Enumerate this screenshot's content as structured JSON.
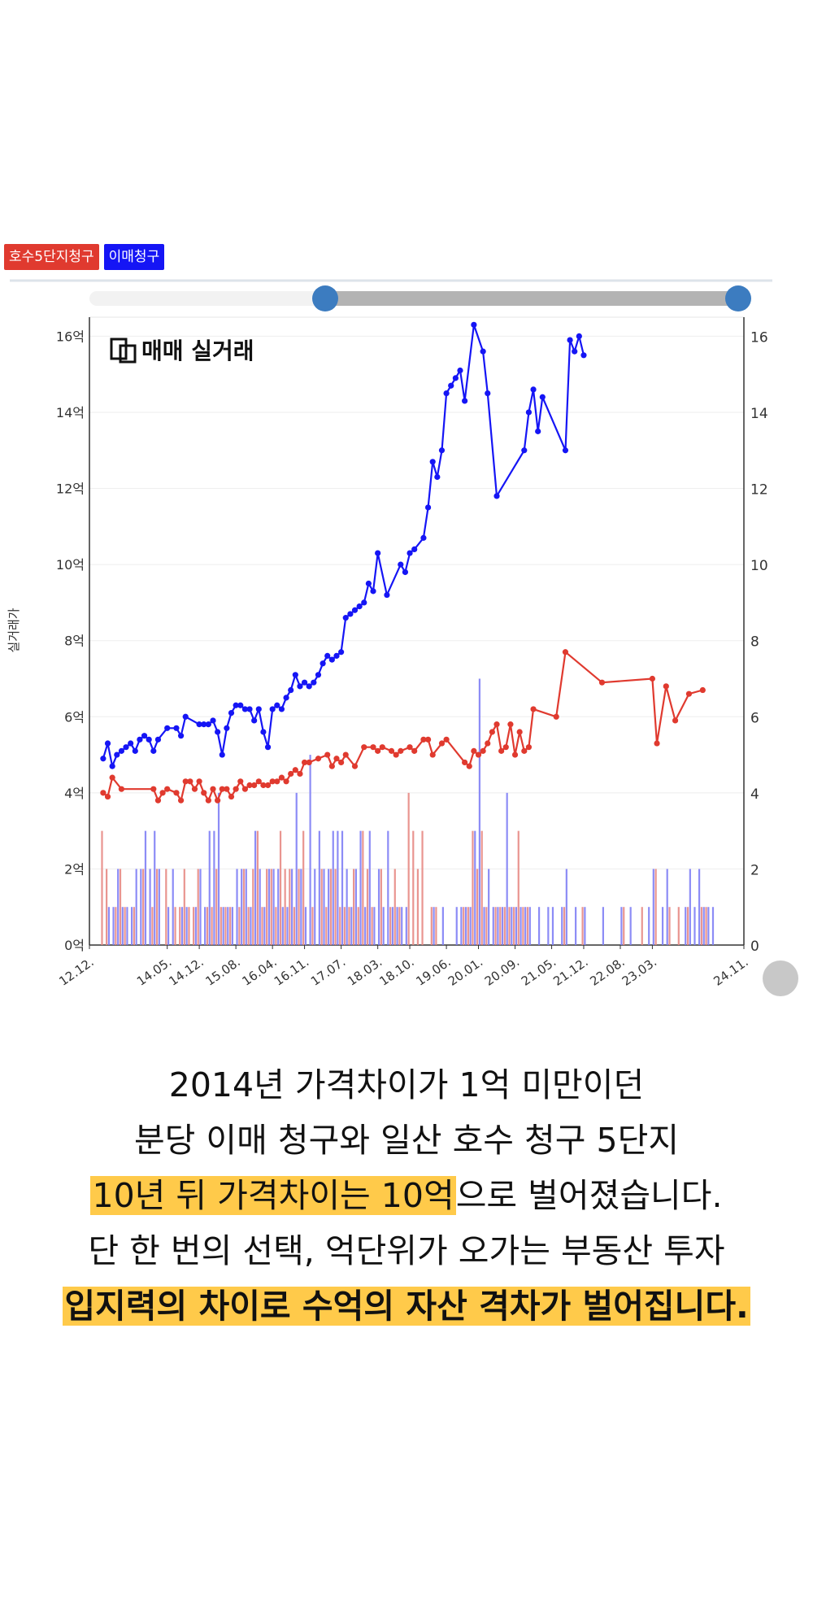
{
  "legend": [
    {
      "label": "호수5단지청구",
      "color": "#E03A2F"
    },
    {
      "label": "이매청구",
      "color": "#1515F5"
    }
  ],
  "chart_data": {
    "type": "line",
    "title": "매매 실거래",
    "ylabel": "실거래가",
    "ylim": [
      0,
      16.5
    ],
    "y_ticks_left": [
      "0억",
      "2억",
      "4억",
      "6억",
      "8억",
      "10억",
      "12억",
      "14억",
      "16억"
    ],
    "y_ticks_right": [
      "0",
      "2",
      "4",
      "6",
      "8",
      "10",
      "12",
      "14",
      "16"
    ],
    "x_ticks": [
      {
        "label": "12.12.",
        "t": 0
      },
      {
        "label": "14.05.",
        "t": 17
      },
      {
        "label": "14.12.",
        "t": 24
      },
      {
        "label": "15.08.",
        "t": 32
      },
      {
        "label": "16.04.",
        "t": 40
      },
      {
        "label": "16.11.",
        "t": 47
      },
      {
        "label": "17.07.",
        "t": 55
      },
      {
        "label": "18.03.",
        "t": 63
      },
      {
        "label": "18.10.",
        "t": 70
      },
      {
        "label": "19.06.",
        "t": 78
      },
      {
        "label": "20.01.",
        "t": 85
      },
      {
        "label": "20.09.",
        "t": 93
      },
      {
        "label": "21.05.",
        "t": 101
      },
      {
        "label": "21.12.",
        "t": 108
      },
      {
        "label": "22.08.",
        "t": 116
      },
      {
        "label": "23.03.",
        "t": 123
      },
      {
        "label": "24.11.",
        "t": 143
      }
    ],
    "series": [
      {
        "name": "호수5단지청구",
        "color": "#E03A2F",
        "points": [
          [
            3,
            4.0
          ],
          [
            4,
            3.9
          ],
          [
            5,
            4.4
          ],
          [
            7,
            4.1
          ],
          [
            14,
            4.1
          ],
          [
            15,
            3.8
          ],
          [
            16,
            4.0
          ],
          [
            17,
            4.1
          ],
          [
            19,
            4.0
          ],
          [
            20,
            3.8
          ],
          [
            21,
            4.3
          ],
          [
            22,
            4.3
          ],
          [
            23,
            4.1
          ],
          [
            24,
            4.3
          ],
          [
            25,
            4.0
          ],
          [
            26,
            3.8
          ],
          [
            27,
            4.1
          ],
          [
            28,
            3.8
          ],
          [
            29,
            4.1
          ],
          [
            30,
            4.1
          ],
          [
            31,
            3.9
          ],
          [
            32,
            4.1
          ],
          [
            33,
            4.3
          ],
          [
            34,
            4.1
          ],
          [
            35,
            4.2
          ],
          [
            36,
            4.2
          ],
          [
            37,
            4.3
          ],
          [
            38,
            4.2
          ],
          [
            39,
            4.2
          ],
          [
            40,
            4.3
          ],
          [
            41,
            4.3
          ],
          [
            42,
            4.4
          ],
          [
            43,
            4.3
          ],
          [
            44,
            4.5
          ],
          [
            45,
            4.6
          ],
          [
            46,
            4.5
          ],
          [
            47,
            4.8
          ],
          [
            48,
            4.8
          ],
          [
            50,
            4.9
          ],
          [
            52,
            5.0
          ],
          [
            53,
            4.7
          ],
          [
            54,
            4.9
          ],
          [
            55,
            4.8
          ],
          [
            56,
            5.0
          ],
          [
            58,
            4.7
          ],
          [
            60,
            5.2
          ],
          [
            62,
            5.2
          ],
          [
            63,
            5.1
          ],
          [
            64,
            5.2
          ],
          [
            66,
            5.1
          ],
          [
            67,
            5.0
          ],
          [
            68,
            5.1
          ],
          [
            70,
            5.2
          ],
          [
            71,
            5.1
          ],
          [
            73,
            5.4
          ],
          [
            74,
            5.4
          ],
          [
            75,
            5.0
          ],
          [
            77,
            5.3
          ],
          [
            78,
            5.4
          ],
          [
            82,
            4.8
          ],
          [
            83,
            4.7
          ],
          [
            84,
            5.1
          ],
          [
            85,
            5.0
          ],
          [
            86,
            5.1
          ],
          [
            87,
            5.3
          ],
          [
            88,
            5.6
          ],
          [
            89,
            5.8
          ],
          [
            90,
            5.1
          ],
          [
            91,
            5.2
          ],
          [
            92,
            5.8
          ],
          [
            93,
            5.0
          ],
          [
            94,
            5.6
          ],
          [
            95,
            5.1
          ],
          [
            96,
            5.2
          ],
          [
            97,
            6.2
          ],
          [
            102,
            6.0
          ],
          [
            104,
            7.7
          ],
          [
            112,
            6.9
          ],
          [
            123,
            7.0
          ],
          [
            124,
            5.3
          ],
          [
            126,
            6.8
          ],
          [
            128,
            5.9
          ],
          [
            131,
            6.6
          ],
          [
            134,
            6.7
          ]
        ]
      },
      {
        "name": "이매청구",
        "color": "#1515F5",
        "points": [
          [
            3,
            4.9
          ],
          [
            4,
            5.3
          ],
          [
            5,
            4.7
          ],
          [
            6,
            5.0
          ],
          [
            7,
            5.1
          ],
          [
            8,
            5.2
          ],
          [
            9,
            5.3
          ],
          [
            10,
            5.1
          ],
          [
            11,
            5.4
          ],
          [
            12,
            5.5
          ],
          [
            13,
            5.4
          ],
          [
            14,
            5.1
          ],
          [
            15,
            5.4
          ],
          [
            17,
            5.7
          ],
          [
            19,
            5.7
          ],
          [
            20,
            5.5
          ],
          [
            21,
            6.0
          ],
          [
            24,
            5.8
          ],
          [
            25,
            5.8
          ],
          [
            26,
            5.8
          ],
          [
            27,
            5.9
          ],
          [
            28,
            5.6
          ],
          [
            29,
            5.0
          ],
          [
            30,
            5.7
          ],
          [
            31,
            6.1
          ],
          [
            32,
            6.3
          ],
          [
            33,
            6.3
          ],
          [
            34,
            6.2
          ],
          [
            35,
            6.2
          ],
          [
            36,
            5.9
          ],
          [
            37,
            6.2
          ],
          [
            38,
            5.6
          ],
          [
            39,
            5.2
          ],
          [
            40,
            6.2
          ],
          [
            41,
            6.3
          ],
          [
            42,
            6.2
          ],
          [
            43,
            6.5
          ],
          [
            44,
            6.7
          ],
          [
            45,
            7.1
          ],
          [
            46,
            6.8
          ],
          [
            47,
            6.9
          ],
          [
            48,
            6.8
          ],
          [
            49,
            6.9
          ],
          [
            50,
            7.1
          ],
          [
            51,
            7.4
          ],
          [
            52,
            7.6
          ],
          [
            53,
            7.5
          ],
          [
            54,
            7.6
          ],
          [
            55,
            7.7
          ],
          [
            56,
            8.6
          ],
          [
            57,
            8.7
          ],
          [
            58,
            8.8
          ],
          [
            59,
            8.9
          ],
          [
            60,
            9.0
          ],
          [
            61,
            9.5
          ],
          [
            62,
            9.3
          ],
          [
            63,
            10.3
          ],
          [
            65,
            9.2
          ],
          [
            68,
            10.0
          ],
          [
            69,
            9.8
          ],
          [
            70,
            10.3
          ],
          [
            71,
            10.4
          ],
          [
            73,
            10.7
          ],
          [
            74,
            11.5
          ],
          [
            75,
            12.7
          ],
          [
            76,
            12.3
          ],
          [
            77,
            13.0
          ],
          [
            78,
            14.5
          ],
          [
            79,
            14.7
          ],
          [
            80,
            14.9
          ],
          [
            81,
            15.1
          ],
          [
            82,
            14.3
          ],
          [
            84,
            16.3
          ],
          [
            86,
            15.6
          ],
          [
            87,
            14.5
          ],
          [
            89,
            11.8
          ],
          [
            95,
            13.0
          ],
          [
            96,
            14.0
          ],
          [
            97,
            14.6
          ],
          [
            98,
            13.5
          ],
          [
            99,
            14.4
          ],
          [
            104,
            13.0
          ],
          [
            105,
            15.9
          ],
          [
            106,
            15.6
          ],
          [
            107,
            16.0
          ],
          [
            108,
            15.5
          ]
        ]
      }
    ],
    "volume_axis": {
      "label_scale": "right"
    },
    "volumes_red": [
      [
        3,
        3
      ],
      [
        4,
        2
      ],
      [
        6,
        1
      ],
      [
        7,
        2
      ],
      [
        8,
        1
      ],
      [
        10,
        1
      ],
      [
        12,
        2
      ],
      [
        14,
        1
      ],
      [
        15,
        2
      ],
      [
        17,
        2
      ],
      [
        19,
        1
      ],
      [
        20,
        1
      ],
      [
        21,
        2
      ],
      [
        22,
        1
      ],
      [
        23,
        1
      ],
      [
        24,
        2
      ],
      [
        26,
        1
      ],
      [
        27,
        1
      ],
      [
        28,
        2
      ],
      [
        29,
        1
      ],
      [
        30,
        1
      ],
      [
        31,
        1
      ],
      [
        33,
        1
      ],
      [
        34,
        2
      ],
      [
        35,
        1
      ],
      [
        36,
        2
      ],
      [
        37,
        3
      ],
      [
        38,
        1
      ],
      [
        39,
        2
      ],
      [
        40,
        2
      ],
      [
        41,
        1
      ],
      [
        42,
        3
      ],
      [
        43,
        2
      ],
      [
        44,
        2
      ],
      [
        45,
        1
      ],
      [
        46,
        2
      ],
      [
        47,
        3
      ],
      [
        49,
        1
      ],
      [
        51,
        2
      ],
      [
        52,
        1
      ],
      [
        53,
        2
      ],
      [
        54,
        2
      ],
      [
        55,
        1
      ],
      [
        56,
        1
      ],
      [
        57,
        1
      ],
      [
        58,
        2
      ],
      [
        59,
        1
      ],
      [
        60,
        3
      ],
      [
        61,
        2
      ],
      [
        62,
        1
      ],
      [
        64,
        2
      ],
      [
        66,
        1
      ],
      [
        67,
        2
      ],
      [
        68,
        1
      ],
      [
        70,
        4
      ],
      [
        71,
        3
      ],
      [
        72,
        2
      ],
      [
        73,
        3
      ],
      [
        75,
        1
      ],
      [
        76,
        1
      ],
      [
        82,
        1
      ],
      [
        83,
        1
      ],
      [
        84,
        3
      ],
      [
        85,
        2
      ],
      [
        86,
        3
      ],
      [
        87,
        1
      ],
      [
        89,
        1
      ],
      [
        90,
        1
      ],
      [
        91,
        1
      ],
      [
        92,
        1
      ],
      [
        93,
        1
      ],
      [
        94,
        3
      ],
      [
        95,
        1
      ],
      [
        96,
        1
      ],
      [
        104,
        1
      ],
      [
        108,
        1
      ],
      [
        117,
        1
      ],
      [
        121,
        1
      ],
      [
        124,
        2
      ],
      [
        127,
        1
      ],
      [
        129,
        1
      ],
      [
        131,
        1
      ],
      [
        134,
        1
      ],
      [
        135,
        1
      ]
    ],
    "volumes_blue": [
      [
        4,
        1
      ],
      [
        5,
        1
      ],
      [
        6,
        2
      ],
      [
        7,
        1
      ],
      [
        8,
        1
      ],
      [
        9,
        1
      ],
      [
        10,
        2
      ],
      [
        11,
        2
      ],
      [
        12,
        3
      ],
      [
        13,
        2
      ],
      [
        14,
        3
      ],
      [
        15,
        2
      ],
      [
        17,
        1
      ],
      [
        18,
        2
      ],
      [
        20,
        1
      ],
      [
        21,
        1
      ],
      [
        23,
        1
      ],
      [
        24,
        2
      ],
      [
        25,
        1
      ],
      [
        26,
        3
      ],
      [
        27,
        3
      ],
      [
        28,
        4
      ],
      [
        29,
        1
      ],
      [
        30,
        1
      ],
      [
        31,
        1
      ],
      [
        32,
        2
      ],
      [
        33,
        2
      ],
      [
        34,
        2
      ],
      [
        35,
        1
      ],
      [
        36,
        3
      ],
      [
        37,
        2
      ],
      [
        38,
        1
      ],
      [
        39,
        2
      ],
      [
        40,
        2
      ],
      [
        41,
        2
      ],
      [
        42,
        1
      ],
      [
        43,
        1
      ],
      [
        44,
        2
      ],
      [
        45,
        4
      ],
      [
        46,
        2
      ],
      [
        47,
        1
      ],
      [
        48,
        5
      ],
      [
        49,
        2
      ],
      [
        50,
        3
      ],
      [
        51,
        2
      ],
      [
        52,
        2
      ],
      [
        53,
        3
      ],
      [
        54,
        3
      ],
      [
        55,
        3
      ],
      [
        56,
        2
      ],
      [
        57,
        1
      ],
      [
        58,
        2
      ],
      [
        59,
        3
      ],
      [
        60,
        1
      ],
      [
        61,
        3
      ],
      [
        62,
        1
      ],
      [
        63,
        2
      ],
      [
        64,
        1
      ],
      [
        65,
        3
      ],
      [
        66,
        1
      ],
      [
        67,
        1
      ],
      [
        68,
        1
      ],
      [
        69,
        1
      ],
      [
        75,
        1
      ],
      [
        77,
        1
      ],
      [
        80,
        1
      ],
      [
        81,
        1
      ],
      [
        82,
        1
      ],
      [
        83,
        1
      ],
      [
        84,
        3
      ],
      [
        85,
        7
      ],
      [
        86,
        1
      ],
      [
        87,
        2
      ],
      [
        88,
        1
      ],
      [
        89,
        1
      ],
      [
        90,
        1
      ],
      [
        91,
        4
      ],
      [
        92,
        1
      ],
      [
        93,
        1
      ],
      [
        94,
        1
      ],
      [
        95,
        1
      ],
      [
        96,
        1
      ],
      [
        98,
        1
      ],
      [
        100,
        1
      ],
      [
        101,
        1
      ],
      [
        103,
        1
      ],
      [
        104,
        2
      ],
      [
        106,
        1
      ],
      [
        108,
        1
      ],
      [
        112,
        1
      ],
      [
        116,
        1
      ],
      [
        118,
        1
      ],
      [
        122,
        1
      ],
      [
        123,
        2
      ],
      [
        125,
        1
      ],
      [
        126,
        2
      ],
      [
        130,
        1
      ],
      [
        131,
        2
      ],
      [
        132,
        1
      ],
      [
        133,
        2
      ],
      [
        134,
        1
      ],
      [
        135,
        1
      ],
      [
        136,
        1
      ]
    ]
  },
  "caption": {
    "line1": "2014년 가격차이가 1억 미만이던",
    "line2": "분당 이매 청구와 일산 호수 청구 5단지",
    "line3_highlight": "10년 뒤 가격차이는 10억",
    "line3_rest": "으로 벌어졌습니다.",
    "line4": "단 한 번의 선택, 억단위가 오가는 부동산 투자",
    "line5_highlight": "입지력의 차이로 수억의 자산 격차가 벌어집니다."
  }
}
